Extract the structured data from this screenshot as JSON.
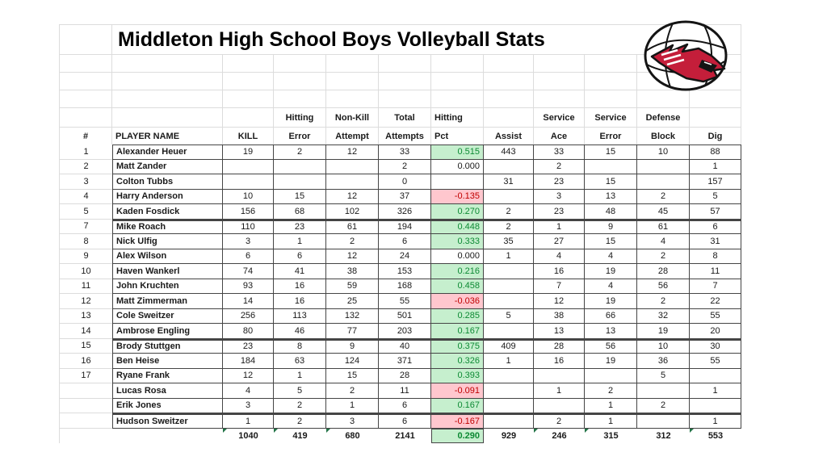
{
  "title": "Middleton High School Boys Volleyball Stats",
  "logo": {
    "icon": "cardinal-volleyball-logo",
    "bird_color": "#c41e3a",
    "ball_color": "#ffffff"
  },
  "colors": {
    "good_fill": "#c6efce",
    "good_text": "#0c8a33",
    "bad_fill": "#ffc7ce",
    "bad_text": "#c00000",
    "grid_light": "#dcdcdc",
    "grid_dark": "#454545",
    "error_triangle": "#217346"
  },
  "columns": {
    "group_headers": [
      "",
      "",
      "",
      "Hitting",
      "Non-Kill",
      "Total",
      "Hitting",
      "",
      "Service",
      "Service",
      "Defense",
      ""
    ],
    "headers": [
      "#",
      "PLAYER NAME",
      "KILL",
      "Error",
      "Attempt",
      "Attempts",
      "Pct",
      "Assist",
      "Ace",
      "Error",
      "Block",
      "Dig"
    ]
  },
  "rows": [
    {
      "cells": [
        "1",
        "Alexander Heuer",
        "19",
        "2",
        "12",
        "33",
        "0.515",
        "443",
        "33",
        "15",
        "10",
        "88"
      ],
      "pct_style": "good",
      "thick_top": false
    },
    {
      "cells": [
        "2",
        "Matt Zander",
        "",
        "",
        "",
        "2",
        "0.000",
        "",
        "2",
        "",
        "",
        "1"
      ],
      "pct_style": "none",
      "thick_top": false
    },
    {
      "cells": [
        "3",
        "Colton Tubbs",
        "",
        "",
        "",
        "0",
        "",
        "31",
        "23",
        "15",
        "",
        "157"
      ],
      "pct_style": "none",
      "thick_top": false
    },
    {
      "cells": [
        "4",
        "Harry Anderson",
        "10",
        "15",
        "12",
        "37",
        "-0.135",
        "",
        "3",
        "13",
        "2",
        "5"
      ],
      "pct_style": "bad",
      "thick_top": false
    },
    {
      "cells": [
        "5",
        "Kaden Fosdick",
        "156",
        "68",
        "102",
        "326",
        "0.270",
        "2",
        "23",
        "48",
        "45",
        "57"
      ],
      "pct_style": "good",
      "thick_top": false
    },
    {
      "cells": [
        "7",
        "Mike Roach",
        "110",
        "23",
        "61",
        "194",
        "0.448",
        "2",
        "1",
        "9",
        "61",
        "6"
      ],
      "pct_style": "good",
      "thick_top": true
    },
    {
      "cells": [
        "8",
        "Nick Ulfig",
        "3",
        "1",
        "2",
        "6",
        "0.333",
        "35",
        "27",
        "15",
        "4",
        "31"
      ],
      "pct_style": "good",
      "thick_top": false
    },
    {
      "cells": [
        "9",
        "Alex Wilson",
        "6",
        "6",
        "12",
        "24",
        "0.000",
        "1",
        "4",
        "4",
        "2",
        "8"
      ],
      "pct_style": "none",
      "thick_top": false
    },
    {
      "cells": [
        "10",
        "Haven Wankerl",
        "74",
        "41",
        "38",
        "153",
        "0.216",
        "",
        "16",
        "19",
        "28",
        "11"
      ],
      "pct_style": "good",
      "thick_top": false
    },
    {
      "cells": [
        "11",
        "John Kruchten",
        "93",
        "16",
        "59",
        "168",
        "0.458",
        "",
        "7",
        "4",
        "56",
        "7"
      ],
      "pct_style": "good",
      "thick_top": false
    },
    {
      "cells": [
        "12",
        "Matt Zimmerman",
        "14",
        "16",
        "25",
        "55",
        "-0.036",
        "",
        "12",
        "19",
        "2",
        "22"
      ],
      "pct_style": "bad",
      "thick_top": false
    },
    {
      "cells": [
        "13",
        "Cole Sweitzer",
        "256",
        "113",
        "132",
        "501",
        "0.285",
        "5",
        "38",
        "66",
        "32",
        "55"
      ],
      "pct_style": "good",
      "thick_top": false
    },
    {
      "cells": [
        "14",
        "Ambrose Engling",
        "80",
        "46",
        "77",
        "203",
        "0.167",
        "",
        "13",
        "13",
        "19",
        "20"
      ],
      "pct_style": "good",
      "thick_top": false
    },
    {
      "cells": [
        "15",
        "Brody Stuttgen",
        "23",
        "8",
        "9",
        "40",
        "0.375",
        "409",
        "28",
        "56",
        "10",
        "30"
      ],
      "pct_style": "good",
      "thick_top": true
    },
    {
      "cells": [
        "16",
        "Ben Heise",
        "184",
        "63",
        "124",
        "371",
        "0.326",
        "1",
        "16",
        "19",
        "36",
        "55"
      ],
      "pct_style": "good",
      "thick_top": false
    },
    {
      "cells": [
        "17",
        "Ryane Frank",
        "12",
        "1",
        "15",
        "28",
        "0.393",
        "",
        "",
        "",
        "5",
        ""
      ],
      "pct_style": "good",
      "thick_top": false
    },
    {
      "cells": [
        "",
        "Lucas Rosa",
        "4",
        "5",
        "2",
        "11",
        "-0.091",
        "",
        "1",
        "2",
        "",
        "1"
      ],
      "pct_style": "bad",
      "thick_top": false
    },
    {
      "cells": [
        "",
        "Erik Jones",
        "3",
        "2",
        "1",
        "6",
        "0.167",
        "",
        "",
        "1",
        "2",
        ""
      ],
      "pct_style": "good",
      "thick_top": false
    },
    {
      "cells": [
        "",
        "Hudson Sweitzer",
        "1",
        "2",
        "3",
        "6",
        "-0.167",
        "",
        "2",
        "1",
        "",
        "1"
      ],
      "pct_style": "bad",
      "thick_top": true
    }
  ],
  "totals": {
    "cells": [
      "",
      "",
      "1040",
      "419",
      "680",
      "2141",
      "0.290",
      "929",
      "246",
      "315",
      "312",
      "553"
    ],
    "pct_style": "good",
    "triangle_columns": [
      2,
      3,
      4,
      8,
      9,
      11
    ]
  }
}
